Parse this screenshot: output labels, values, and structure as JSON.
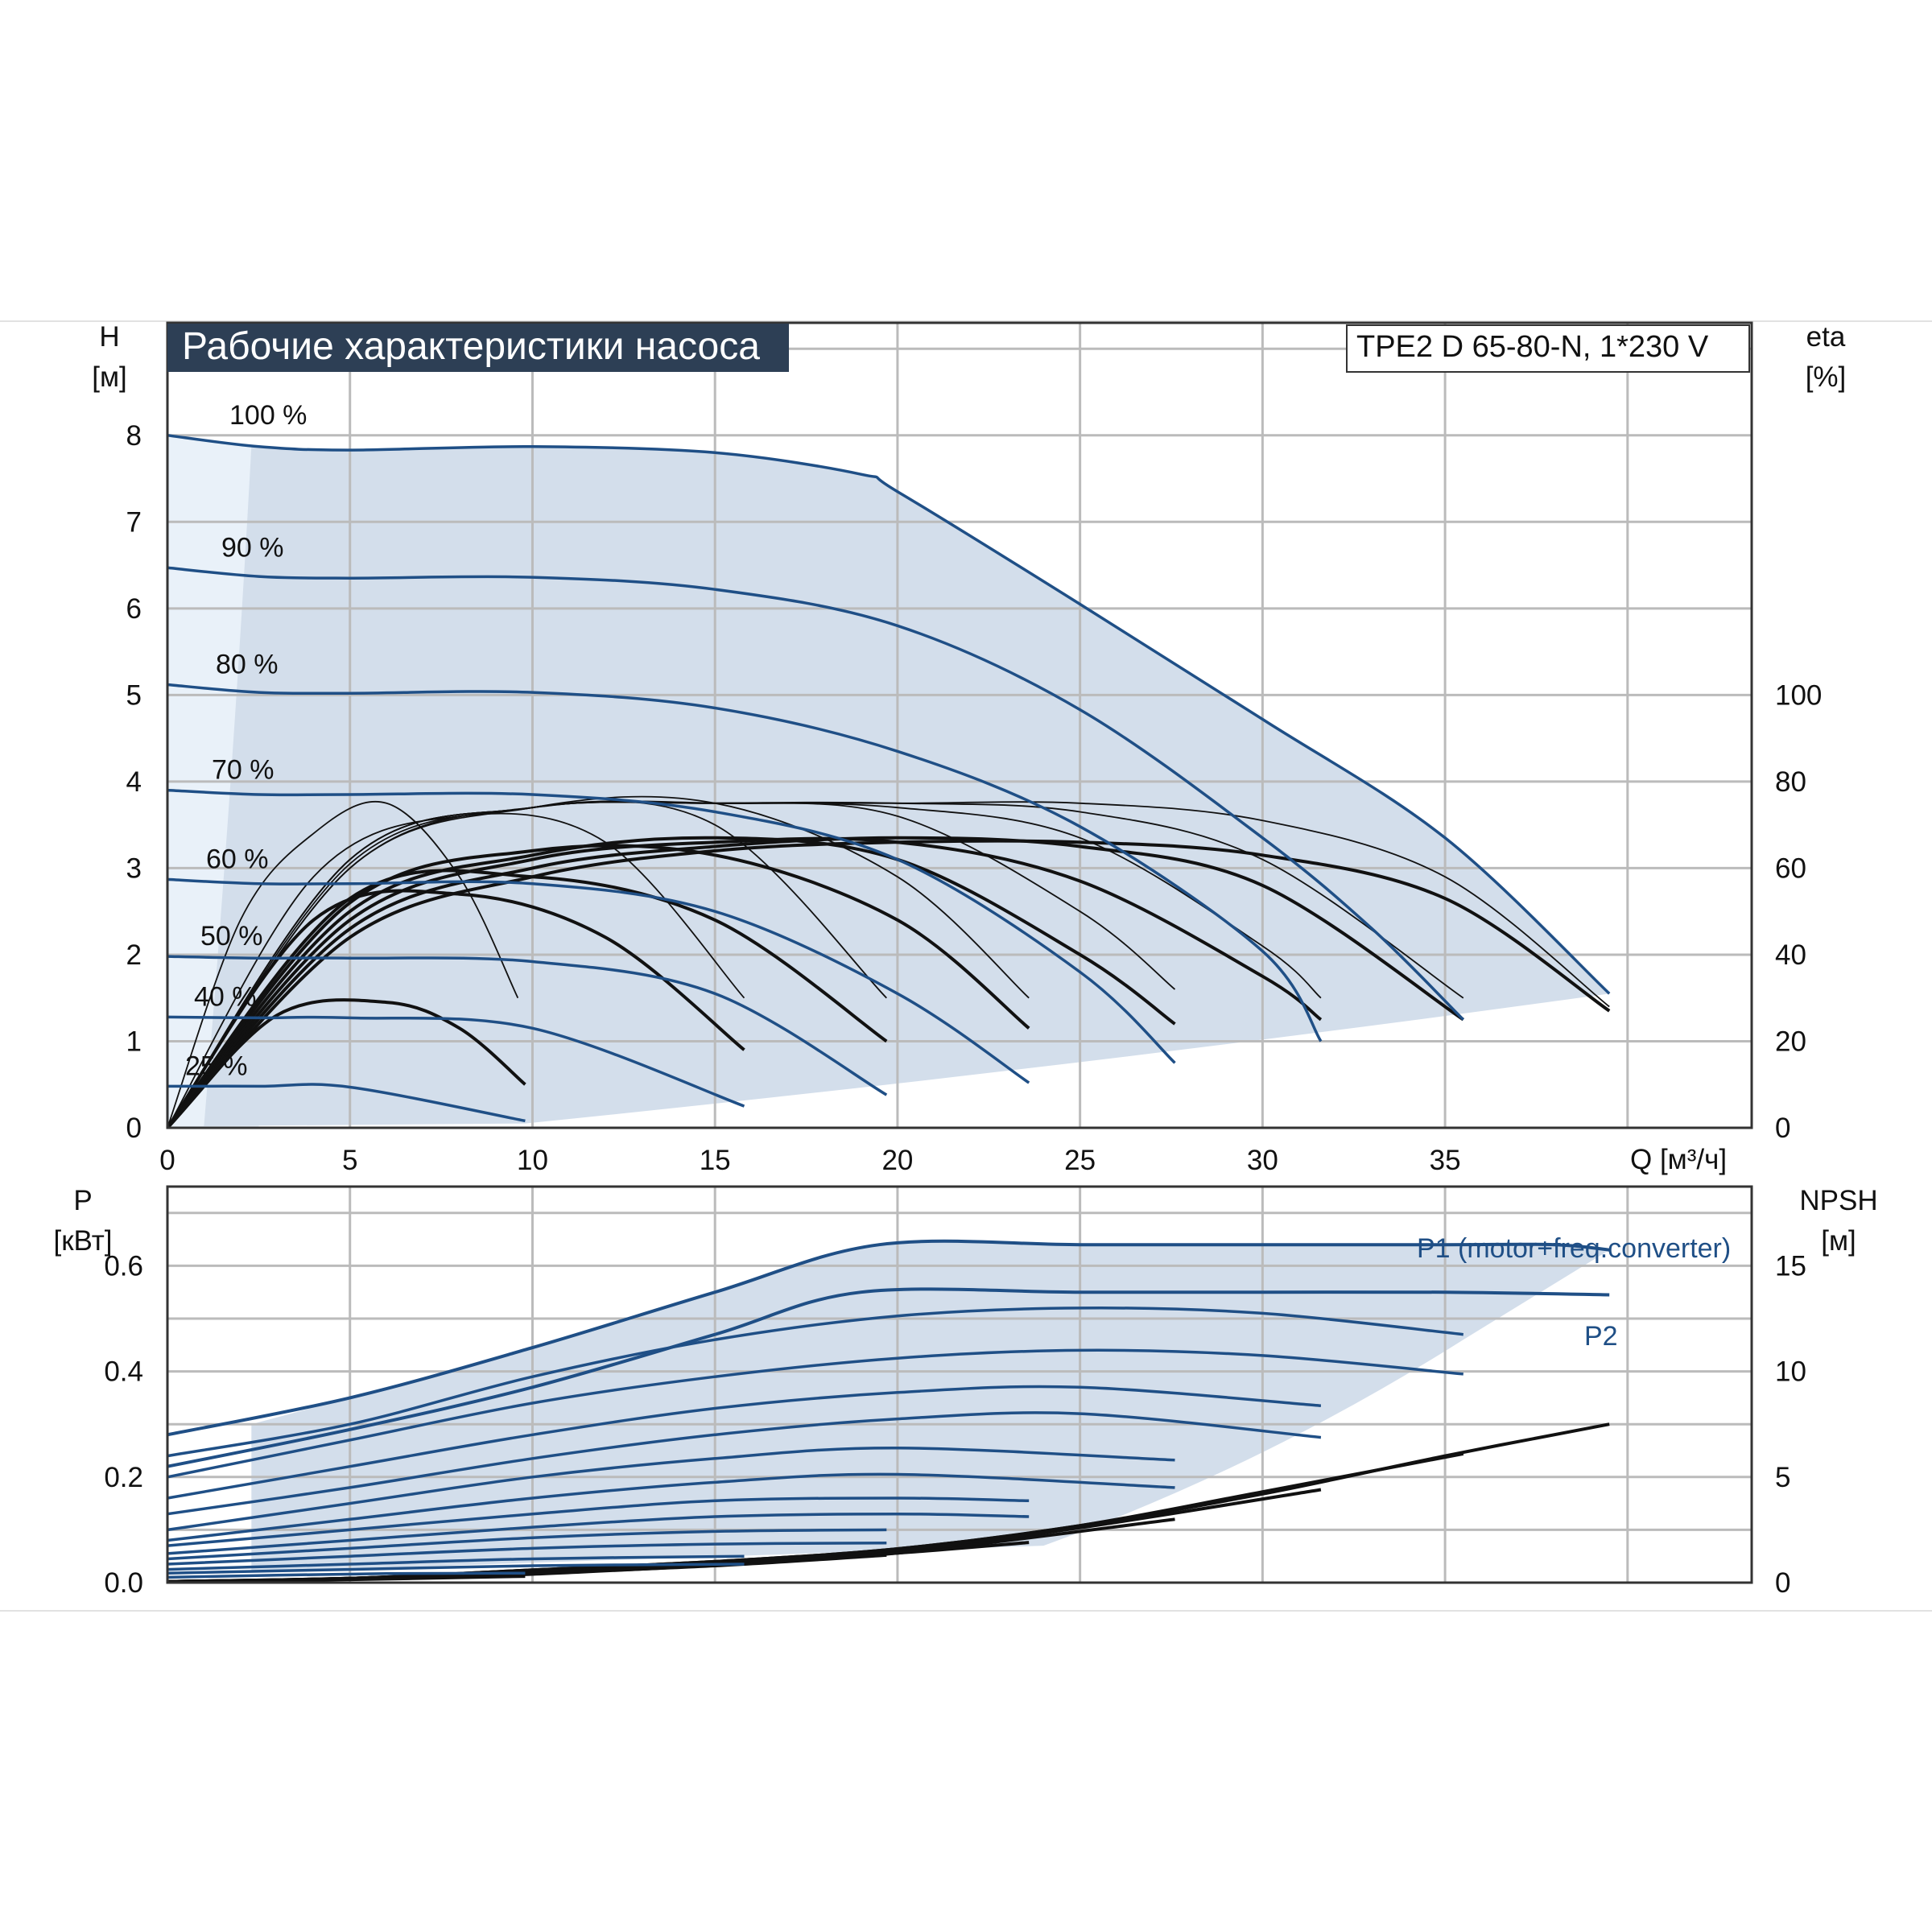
{
  "chart_data": [
    {
      "type": "line",
      "title": "Рабочие характеристики насоса",
      "model": "TPE2 D 65-80-N, 1*230 V",
      "y_label": "H",
      "y_unit": "[м]",
      "y2_label": "eta",
      "y2_unit": "[%]",
      "x_label": "Q [м³/ч]",
      "xlim": [
        0,
        43.4
      ],
      "ylim": [
        0,
        9.3
      ],
      "y2lim": [
        0,
        100
      ],
      "x_ticks": [
        "0",
        "5",
        "10",
        "15",
        "20",
        "25",
        "30",
        "35"
      ],
      "y_ticks": [
        "0",
        "1",
        "2",
        "3",
        "4",
        "5",
        "6",
        "7",
        "8"
      ],
      "y2_ticks": [
        "0",
        "20",
        "40",
        "60",
        "80",
        "100"
      ],
      "grid": true,
      "colors": {
        "pq": "#1f4f86",
        "eta": "#111111",
        "area": "#d3deeb",
        "area_light": "#e9f1f9",
        "title_bg": "#2d3f55"
      },
      "series": [
        {
          "name": "100 %",
          "x": [
            0,
            2.5,
            5,
            10,
            15,
            19,
            20,
            25,
            30,
            35,
            39.5
          ],
          "y": [
            8.0,
            7.87,
            7.83,
            7.87,
            7.8,
            7.55,
            7.35,
            6.05,
            4.72,
            3.35,
            1.55
          ]
        },
        {
          "name": "90 %",
          "x": [
            0,
            2.5,
            5,
            10,
            15,
            20,
            25,
            30,
            33,
            35.5
          ],
          "y": [
            6.47,
            6.37,
            6.35,
            6.36,
            6.22,
            5.8,
            4.83,
            3.35,
            2.3,
            1.25
          ]
        },
        {
          "name": "80 %",
          "x": [
            0,
            2.5,
            5,
            10,
            15,
            20,
            25,
            30,
            31.6
          ],
          "y": [
            5.12,
            5.03,
            5.02,
            5.03,
            4.85,
            4.35,
            3.48,
            2.04,
            1.0
          ]
        },
        {
          "name": "70 %",
          "x": [
            0,
            2.5,
            5,
            10,
            15,
            20,
            25,
            27.6
          ],
          "y": [
            3.9,
            3.85,
            3.85,
            3.85,
            3.65,
            3.1,
            1.8,
            0.75
          ]
        },
        {
          "name": "60 %",
          "x": [
            0,
            2.5,
            5,
            10,
            15,
            20,
            23.6
          ],
          "y": [
            2.87,
            2.82,
            2.82,
            2.82,
            2.5,
            1.55,
            0.52
          ]
        },
        {
          "name": "50 %",
          "x": [
            0,
            2.5,
            5,
            10,
            15,
            19.7
          ],
          "y": [
            1.98,
            1.96,
            1.96,
            1.92,
            1.55,
            0.38
          ]
        },
        {
          "name": "40 %",
          "x": [
            0,
            2.5,
            5,
            10,
            15.8
          ],
          "y": [
            1.28,
            1.27,
            1.27,
            1.15,
            0.25
          ]
        },
        {
          "name": "25 %",
          "x": [
            0,
            2.5,
            5,
            9.8
          ],
          "y": [
            0.48,
            0.48,
            0.47,
            0.08
          ]
        }
      ],
      "efficiency_series": [
        {
          "x": [
            0,
            5,
            10,
            15,
            20,
            25,
            30,
            35,
            39.5
          ],
          "eta": [
            0,
            44,
            58,
            64,
            66,
            66,
            63,
            53,
            27
          ]
        },
        {
          "x": [
            0,
            5,
            10,
            15,
            20,
            25,
            30,
            35.5
          ],
          "eta": [
            0,
            46,
            60,
            65,
            67,
            65,
            56,
            25
          ]
        },
        {
          "x": [
            0,
            5,
            10,
            15,
            20,
            25,
            30,
            31.6
          ],
          "eta": [
            0,
            48,
            62,
            66,
            66,
            57,
            35,
            25
          ]
        },
        {
          "x": [
            0,
            5,
            10,
            15,
            20,
            25,
            27.6
          ],
          "eta": [
            0,
            50,
            63,
            67,
            62,
            40,
            24
          ]
        },
        {
          "x": [
            0,
            5,
            10,
            15,
            20,
            23.6
          ],
          "eta": [
            0,
            52,
            64,
            63,
            48,
            23
          ]
        },
        {
          "x": [
            0,
            5,
            10,
            15,
            19.7
          ],
          "eta": [
            0,
            53,
            58,
            48,
            20
          ]
        },
        {
          "x": [
            0,
            4,
            8,
            12,
            15.8
          ],
          "eta": [
            0,
            48,
            54,
            44,
            18
          ]
        },
        {
          "x": [
            0,
            3,
            6,
            8,
            9.8
          ],
          "eta": [
            0,
            26,
            29,
            23,
            10
          ]
        },
        {
          "x": [
            0,
            2,
            4,
            6,
            8,
            9.6
          ],
          "eta": [
            0,
            48,
            68,
            75,
            58,
            30
          ]
        },
        {
          "x": [
            0,
            4,
            8,
            12,
            15.8
          ],
          "eta": [
            0,
            58,
            72,
            66,
            30
          ]
        },
        {
          "x": [
            0,
            5,
            10,
            15,
            19.7
          ],
          "eta": [
            0,
            60,
            74,
            70,
            30
          ]
        },
        {
          "x": [
            0,
            5,
            10,
            15,
            20,
            23.6
          ],
          "eta": [
            0,
            60,
            74,
            75,
            58,
            30
          ]
        },
        {
          "x": [
            0,
            5,
            10,
            15,
            20,
            25,
            27.6
          ],
          "eta": [
            0,
            61,
            74,
            75,
            72,
            50,
            32
          ]
        },
        {
          "x": [
            0,
            5,
            10,
            15,
            20,
            25,
            30,
            31.6
          ],
          "eta": [
            0,
            62,
            74,
            75,
            74,
            67,
            42,
            30
          ]
        },
        {
          "x": [
            0,
            5,
            10,
            15,
            20,
            25,
            30,
            35.5
          ],
          "eta": [
            0,
            62,
            74,
            75,
            75,
            73,
            62,
            30
          ]
        },
        {
          "x": [
            0,
            5,
            10,
            15,
            20,
            25,
            30,
            35,
            39.5
          ],
          "eta": [
            0,
            62,
            74,
            75,
            75,
            75,
            71,
            58,
            28
          ]
        }
      ]
    },
    {
      "type": "line",
      "y_label": "P",
      "y_unit": "[кВт]",
      "y2_label": "NPSH",
      "y2_unit": "[м]",
      "xlim": [
        0,
        43.4
      ],
      "ylim": [
        0,
        0.75
      ],
      "y2lim": [
        0,
        18.75
      ],
      "y_ticks": [
        "0.0",
        "0.2",
        "0.4",
        "0.6"
      ],
      "y2_ticks": [
        "0",
        "5",
        "10",
        "15"
      ],
      "p1_label": "P1 (motor+freq.converter)",
      "p2_label": "P2",
      "grid": true,
      "series": [
        {
          "name": "P1 (motor+freq.converter)",
          "x": [
            0,
            5,
            10,
            15,
            19.5,
            25,
            30,
            35,
            38,
            39.5
          ],
          "y": [
            0.28,
            0.35,
            0.445,
            0.55,
            0.64,
            0.64,
            0.64,
            0.64,
            0.64,
            0.63
          ]
        },
        {
          "name": "P2",
          "x": [
            0,
            5,
            10,
            15,
            19,
            25,
            30,
            35,
            39.5
          ],
          "y": [
            0.22,
            0.29,
            0.37,
            0.47,
            0.55,
            0.55,
            0.55,
            0.55,
            0.545
          ]
        },
        {
          "x": [
            0,
            5,
            10,
            15,
            20,
            25,
            30,
            35.5
          ],
          "y": [
            0.24,
            0.3,
            0.39,
            0.46,
            0.505,
            0.52,
            0.51,
            0.47
          ]
        },
        {
          "x": [
            0,
            5,
            10,
            15,
            20,
            25,
            30,
            35.5
          ],
          "y": [
            0.2,
            0.27,
            0.34,
            0.39,
            0.425,
            0.44,
            0.43,
            0.395
          ]
        },
        {
          "x": [
            0,
            5,
            10,
            15,
            20,
            25,
            31.6
          ],
          "y": [
            0.16,
            0.22,
            0.28,
            0.33,
            0.36,
            0.37,
            0.335
          ]
        },
        {
          "x": [
            0,
            5,
            10,
            15,
            20,
            25,
            31.6
          ],
          "y": [
            0.13,
            0.18,
            0.235,
            0.28,
            0.31,
            0.32,
            0.275
          ]
        },
        {
          "x": [
            0,
            5,
            10,
            15,
            20,
            27.6
          ],
          "y": [
            0.1,
            0.15,
            0.2,
            0.235,
            0.255,
            0.232
          ]
        },
        {
          "x": [
            0,
            5,
            10,
            15,
            20,
            27.6
          ],
          "y": [
            0.08,
            0.12,
            0.16,
            0.19,
            0.205,
            0.18
          ]
        },
        {
          "x": [
            0,
            5,
            10,
            15,
            20,
            23.6
          ],
          "y": [
            0.07,
            0.1,
            0.13,
            0.155,
            0.16,
            0.155
          ]
        },
        {
          "x": [
            0,
            5,
            10,
            15,
            20,
            23.6
          ],
          "y": [
            0.055,
            0.08,
            0.105,
            0.125,
            0.13,
            0.125
          ]
        },
        {
          "x": [
            0,
            5,
            10,
            15,
            19.7
          ],
          "y": [
            0.045,
            0.065,
            0.085,
            0.097,
            0.1
          ]
        },
        {
          "x": [
            0,
            5,
            10,
            15,
            19.7
          ],
          "y": [
            0.035,
            0.05,
            0.065,
            0.073,
            0.075
          ]
        },
        {
          "x": [
            0,
            5,
            10,
            15.8
          ],
          "y": [
            0.025,
            0.035,
            0.045,
            0.05
          ]
        },
        {
          "x": [
            0,
            5,
            10,
            15.8
          ],
          "y": [
            0.018,
            0.025,
            0.032,
            0.035
          ]
        },
        {
          "x": [
            0,
            3,
            6,
            9.8
          ],
          "y": [
            0.01,
            0.014,
            0.017,
            0.018
          ]
        }
      ],
      "npsh_series": [
        {
          "x": [
            0,
            5,
            10,
            15,
            20,
            25,
            30,
            35,
            39.5
          ],
          "npsh": [
            0.05,
            0.2,
            0.6,
            1.0,
            1.6,
            2.7,
            4.2,
            6.0,
            7.5
          ]
        },
        {
          "x": [
            0,
            5,
            10,
            15,
            20,
            25,
            30,
            35.5
          ],
          "npsh": [
            0.05,
            0.2,
            0.6,
            1.0,
            1.6,
            2.7,
            4.3,
            6.1
          ]
        },
        {
          "x": [
            0,
            5,
            10,
            15,
            20,
            25,
            31.6
          ],
          "npsh": [
            0.05,
            0.2,
            0.55,
            0.95,
            1.5,
            2.6,
            4.4
          ]
        },
        {
          "x": [
            0,
            5,
            10,
            15,
            20,
            27.6
          ],
          "npsh": [
            0.05,
            0.2,
            0.5,
            0.9,
            1.4,
            3.0
          ]
        },
        {
          "x": [
            0,
            5,
            10,
            15,
            20,
            23.6
          ],
          "npsh": [
            0.05,
            0.2,
            0.5,
            0.85,
            1.4,
            1.9
          ]
        },
        {
          "x": [
            0,
            5,
            10,
            15,
            19.7
          ],
          "npsh": [
            0.05,
            0.18,
            0.45,
            0.8,
            1.3
          ]
        },
        {
          "x": [
            0,
            5,
            10,
            15.8
          ],
          "npsh": [
            0.05,
            0.16,
            0.4,
            0.9
          ]
        },
        {
          "x": [
            0,
            5,
            9.8
          ],
          "npsh": [
            0.05,
            0.15,
            0.3
          ]
        }
      ]
    }
  ]
}
